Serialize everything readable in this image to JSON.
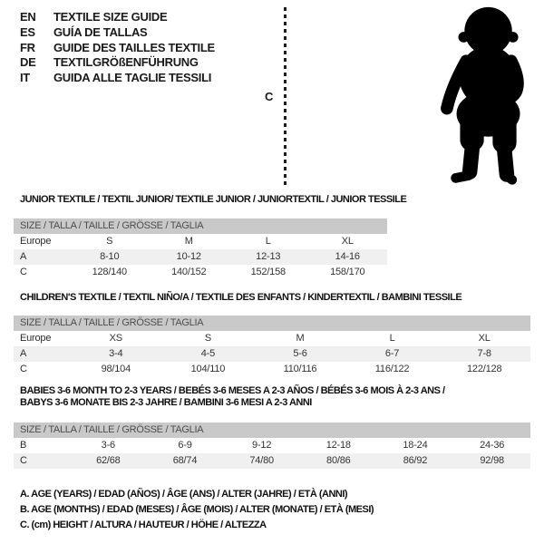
{
  "languages": [
    {
      "code": "EN",
      "text": "TEXTILE SIZE GUIDE"
    },
    {
      "code": "ES",
      "text": "GUÍA DE TALLAS"
    },
    {
      "code": "FR",
      "text": "GUIDE DES TAILLES TEXTILE"
    },
    {
      "code": "DE",
      "text": "TEXTILGRÖßENFÜHRUNG"
    },
    {
      "code": "IT",
      "text": "GUIDA ALLE TAGLIE TESSILI"
    }
  ],
  "figure": {
    "measure_label": "C",
    "icon": "baby-silhouette",
    "silhouette_color": "#000000"
  },
  "tables": [
    {
      "title_lines": [
        "JUNIOR TEXTILE / TEXTIL JUNIOR/ TEXTILE JUNIOR / JUNIORTEXTIL / JUNIOR TESSILE"
      ],
      "header": "SIZE / TALLA / TAILLE / GRÖSSE / TAGLIA",
      "rows": [
        {
          "label": "Europe",
          "values": [
            "S",
            "M",
            "L",
            "XL"
          ],
          "shaded": false
        },
        {
          "label": "A",
          "values": [
            "8-10",
            "10-12",
            "12-13",
            "14-16"
          ],
          "shaded": true
        },
        {
          "label": "C",
          "values": [
            "128/140",
            "140/152",
            "152/158",
            "158/170"
          ],
          "shaded": false
        }
      ]
    },
    {
      "title_lines": [
        "CHILDREN'S TEXTILE / TEXTIL NIÑO/A / TEXTILE DES ENFANTS / KINDERTEXTIL / BAMBINI TESSILE"
      ],
      "header": "SIZE / TALLA / TAILLE / GRÖSSE / TAGLIA",
      "rows": [
        {
          "label": "Europe",
          "values": [
            "XS",
            "S",
            "M",
            "L",
            "XL"
          ],
          "shaded": false
        },
        {
          "label": "A",
          "values": [
            "3-4",
            "4-5",
            "5-6",
            "6-7",
            "7-8"
          ],
          "shaded": true
        },
        {
          "label": "C",
          "values": [
            "98/104",
            "104/110",
            "110/116",
            "116/122",
            "122/128"
          ],
          "shaded": false
        }
      ]
    },
    {
      "title_lines": [
        "BABIES 3-6 MONTH TO 2-3 YEARS / BEBÉS 3-6 MESES A 2-3 AÑOS / BÉBÉS 3-6 MOIS À 2-3 ANS /",
        "BABYS 3-6 MONATE BIS 2-3 JAHRE / BAMBINI 3-6 MESI A 2-3 ANNI"
      ],
      "header": "SIZE / TALLA / TAILLE / GRÖSSE / TAGLIA",
      "rows": [
        {
          "label": "B",
          "values": [
            "3-6",
            "6-9",
            "9-12",
            "12-18",
            "18-24",
            "24-36"
          ],
          "shaded": false
        },
        {
          "label": "C",
          "values": [
            "62/68",
            "68/74",
            "74/80",
            "80/86",
            "86/92",
            "92/98"
          ],
          "shaded": true
        }
      ]
    }
  ],
  "notes": [
    "A. AGE (YEARS) / EDAD (AÑOS) / ÂGE (ANS) / ALTER (JAHRE) / ETÀ (ANNI)",
    "B. AGE (MONTHS) / EDAD (MESES) / ÂGE (MOIS) / ALTER (MONATE) / ETÀ (MESI)",
    "C. (cm) HEIGHT / ALTURA / HAUTEUR / HÖHE / ALTEZZA"
  ],
  "colors": {
    "header_bar": "#c9c9c9",
    "row_stripe": "#f0f0f0",
    "bar_text": "#4d4d4d",
    "text": "#1a1a1a"
  }
}
